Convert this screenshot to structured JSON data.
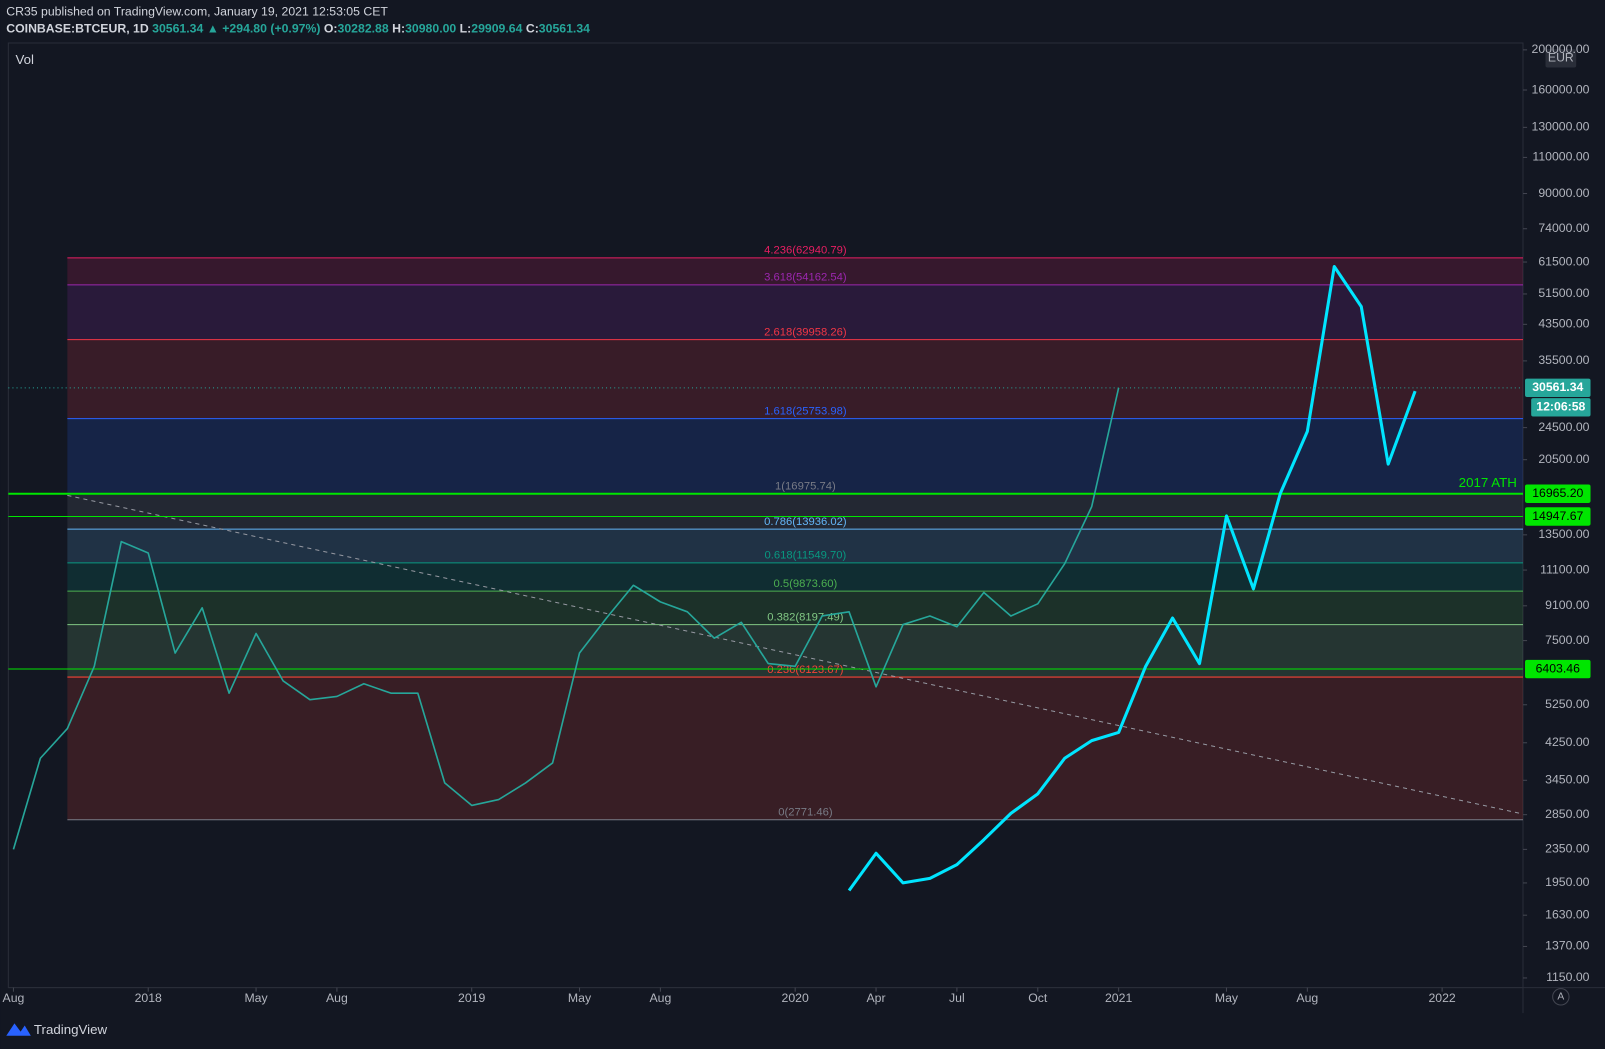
{
  "header": {
    "author_line": "CR35 published on TradingView.com, January 19, 2021 12:53:05 CET",
    "symbol": "COINBASE:BTCEUR, 1D",
    "last": "30561.34",
    "change": "▲ +294.80 (+0.97%)",
    "open_label": "O:",
    "open": "30282.88",
    "high_label": "H:",
    "high": "30980.00",
    "low_label": "L:",
    "low": "29909.64",
    "close_label": "C:",
    "close": "30561.34"
  },
  "chart_data": {
    "type": "line",
    "log_scale": true,
    "grid": false,
    "currency": "EUR",
    "volume_label": "Vol",
    "x": [
      "2017-08",
      "2017-09",
      "2017-10",
      "2017-11",
      "2017-12",
      "2018-01",
      "2018-02",
      "2018-03",
      "2018-04",
      "2018-05",
      "2018-06",
      "2018-07",
      "2018-08",
      "2018-09",
      "2018-10",
      "2018-11",
      "2018-12",
      "2019-01",
      "2019-02",
      "2019-03",
      "2019-04",
      "2019-05",
      "2019-06",
      "2019-07",
      "2019-08",
      "2019-09",
      "2019-10",
      "2019-11",
      "2019-12",
      "2020-01",
      "2020-02",
      "2020-03",
      "2020-04",
      "2020-05",
      "2020-06",
      "2020-07",
      "2020-08",
      "2020-09",
      "2020-10",
      "2020-11",
      "2020-12",
      "2021-01",
      "2021-02",
      "2021-03",
      "2021-04",
      "2021-05",
      "2021-06",
      "2021-07",
      "2021-08",
      "2021-09",
      "2021-10",
      "2021-11",
      "2021-12"
    ],
    "series": [
      {
        "color": "#26a69a",
        "values": [
          2350,
          3900,
          4600,
          6500,
          13000,
          12200,
          7000,
          9000,
          5600,
          7800,
          6000,
          5400,
          5500,
          5900,
          5600,
          5600,
          3400,
          3000,
          3100,
          3400,
          3800,
          7000,
          8500,
          10200,
          9300,
          8800,
          7600,
          8300,
          6600,
          6500,
          8600,
          8800,
          5800,
          8200,
          8600,
          8100,
          9800,
          8600,
          9200,
          11500,
          15800,
          30560,
          null,
          null,
          null,
          null,
          null,
          null,
          null,
          null,
          null,
          null,
          null
        ]
      },
      {
        "color": "#00e5ff",
        "values": [
          null,
          null,
          null,
          null,
          null,
          null,
          null,
          null,
          null,
          null,
          null,
          null,
          null,
          null,
          null,
          null,
          null,
          null,
          null,
          null,
          null,
          null,
          null,
          null,
          null,
          null,
          null,
          null,
          null,
          null,
          null,
          1870,
          2300,
          1950,
          2000,
          2160,
          2480,
          2870,
          3200,
          3900,
          4300,
          4500,
          6500,
          8500,
          6600,
          15000,
          10000,
          17000,
          24000,
          60000,
          48000,
          20000,
          30000
        ]
      }
    ],
    "xlim": [
      "2017-08",
      "2022-04"
    ],
    "xticks": [
      {
        "value": "2017-08",
        "label": "Aug"
      },
      {
        "value": "2018-01",
        "label": "2018"
      },
      {
        "value": "2018-05",
        "label": "May"
      },
      {
        "value": "2018-08",
        "label": "Aug"
      },
      {
        "value": "2019-01",
        "label": "2019"
      },
      {
        "value": "2019-05",
        "label": "May"
      },
      {
        "value": "2019-08",
        "label": "Aug"
      },
      {
        "value": "2020-01",
        "label": "2020"
      },
      {
        "value": "2020-04",
        "label": "Apr"
      },
      {
        "value": "2020-07",
        "label": "Jul"
      },
      {
        "value": "2020-10",
        "label": "Oct"
      },
      {
        "value": "2021-01",
        "label": "2021"
      },
      {
        "value": "2021-05",
        "label": "May"
      },
      {
        "value": "2021-08",
        "label": "Aug"
      },
      {
        "value": "2022-01",
        "label": "2022"
      }
    ],
    "ylim": [
      1090,
      207800
    ],
    "yticks": [
      {
        "value": 200000,
        "label": "200000.00"
      },
      {
        "value": 160000,
        "label": "160000.00"
      },
      {
        "value": 130000,
        "label": "130000.00"
      },
      {
        "value": 110000,
        "label": "110000.00"
      },
      {
        "value": 90000,
        "label": "90000.00"
      },
      {
        "value": 74000,
        "label": "74000.00"
      },
      {
        "value": 61500,
        "label": "61500.00"
      },
      {
        "value": 51500,
        "label": "51500.00"
      },
      {
        "value": 43500,
        "label": "43500.00"
      },
      {
        "value": 35500,
        "label": "35500.00"
      },
      {
        "value": 24500,
        "label": "24500.00"
      },
      {
        "value": 20500,
        "label": "20500.00"
      },
      {
        "value": 13500,
        "label": "13500.00"
      },
      {
        "value": 11100,
        "label": "11100.00"
      },
      {
        "value": 9100,
        "label": "9100.00"
      },
      {
        "value": 7500,
        "label": "7500.00"
      },
      {
        "value": 5250,
        "label": "5250.00"
      },
      {
        "value": 4250,
        "label": "4250.00"
      },
      {
        "value": 3450,
        "label": "3450.00"
      },
      {
        "value": 2850,
        "label": "2850.00"
      },
      {
        "value": 2350,
        "label": "2350.00"
      },
      {
        "value": 1950,
        "label": "1950.00"
      },
      {
        "value": 1630,
        "label": "1630.00"
      },
      {
        "value": 1370,
        "label": "1370.00"
      },
      {
        "value": 1150,
        "label": "1150.00"
      }
    ],
    "fib_levels": [
      {
        "label": "4.236(62940.79)",
        "value": 62940.79,
        "color": "#e91e63"
      },
      {
        "label": "3.618(54162.54)",
        "value": 54162.54,
        "color": "#9c27b0"
      },
      {
        "label": "2.618(39958.26)",
        "value": 39958.26,
        "color": "#f23645"
      },
      {
        "label": "1.618(25753.98)",
        "value": 25753.98,
        "color": "#2962ff"
      },
      {
        "label": "1(16975.74)",
        "value": 16975.74,
        "color": "#787b86"
      },
      {
        "label": "0.786(13936.02)",
        "value": 13936.02,
        "color": "#64b5f6"
      },
      {
        "label": "0.618(11549.70)",
        "value": 11549.7,
        "color": "#089981"
      },
      {
        "label": "0.5(9873.60)",
        "value": 9873.6,
        "color": "#4caf50"
      },
      {
        "label": "0.382(8197.49)",
        "value": 8197.49,
        "color": "#81c784"
      },
      {
        "label": "0.236(6123.67)",
        "value": 6123.67,
        "color": "#f44336"
      },
      {
        "label": "0(2771.46)",
        "value": 2771.46,
        "color": "#787b86"
      }
    ],
    "fib_start": "2017-10",
    "horizontal_lines": [
      {
        "value": 16965.2,
        "label": "16965.20",
        "annotation": "2017 ATH",
        "color": "#00e600"
      },
      {
        "value": 14947.67,
        "label": "14947.67",
        "color": "#00e600"
      },
      {
        "value": 6403.46,
        "label": "6403.46",
        "color": "#00e600"
      }
    ],
    "trendline": {
      "x": [
        "2017-10",
        "2022-04"
      ],
      "y": [
        16810,
        2860
      ],
      "color": "#9598a1"
    },
    "last_price": {
      "value": 30561.34,
      "label": "30561.34",
      "countdown": "12:06:58",
      "color": "#26a69a"
    },
    "brand": "TradingView",
    "scale_mode": "A"
  }
}
